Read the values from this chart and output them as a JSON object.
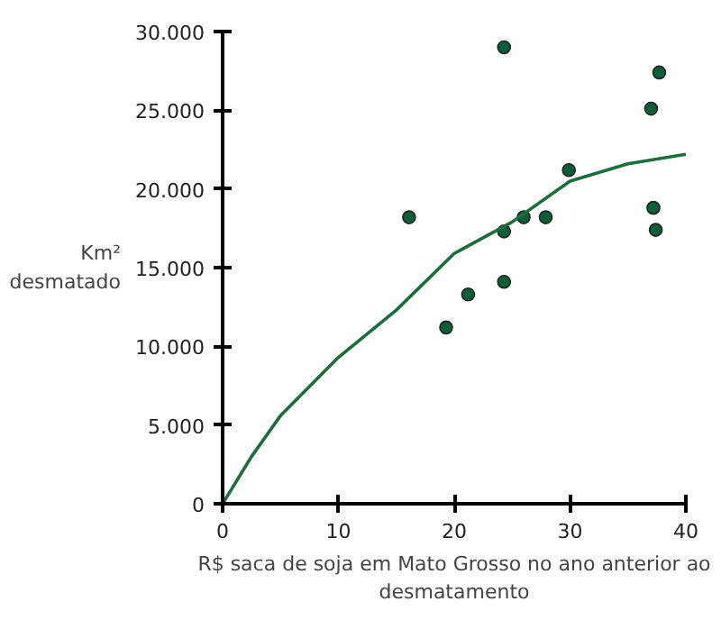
{
  "chart_data": {
    "type": "scatter",
    "xlabel": "R$ saca de soja em Mato Grosso no ano anterior ao\ndesmatamento",
    "ylabel": "Km²\ndesmatado",
    "xlim": [
      0,
      40
    ],
    "ylim": [
      0,
      30000
    ],
    "xticks": [
      0,
      10,
      20,
      30,
      40
    ],
    "yticks": [
      0,
      {
        "value": 5000,
        "label": "5.000"
      },
      {
        "value": 10000,
        "label": "10.000"
      },
      {
        "value": 15000,
        "label": "15.000"
      },
      {
        "value": 20000,
        "label": "20.000"
      },
      {
        "value": 25000,
        "label": "25.000"
      },
      {
        "value": 30000,
        "label": "30.000"
      }
    ],
    "grid": false,
    "marker": "circle",
    "series": [
      {
        "color": "#0b5e3a",
        "x": [
          16.1,
          24.3,
          37.7,
          37.0,
          29.9,
          26.0,
          27.9,
          24.3,
          37.2,
          37.4,
          24.3,
          19.3,
          21.2
        ],
        "values": [
          18200,
          29000,
          27400,
          25100,
          21200,
          18200,
          18200,
          17300,
          18800,
          17400,
          14100,
          11200,
          13300
        ]
      },
      {
        "type": "line",
        "color": "#1a6e3a",
        "marker": "none",
        "x": [
          0,
          2.5,
          5,
          10,
          15,
          20,
          25,
          30,
          35,
          40
        ],
        "values": [
          0,
          3000,
          5600,
          9300,
          12300,
          15900,
          17900,
          20500,
          21600,
          22200
        ]
      }
    ]
  }
}
